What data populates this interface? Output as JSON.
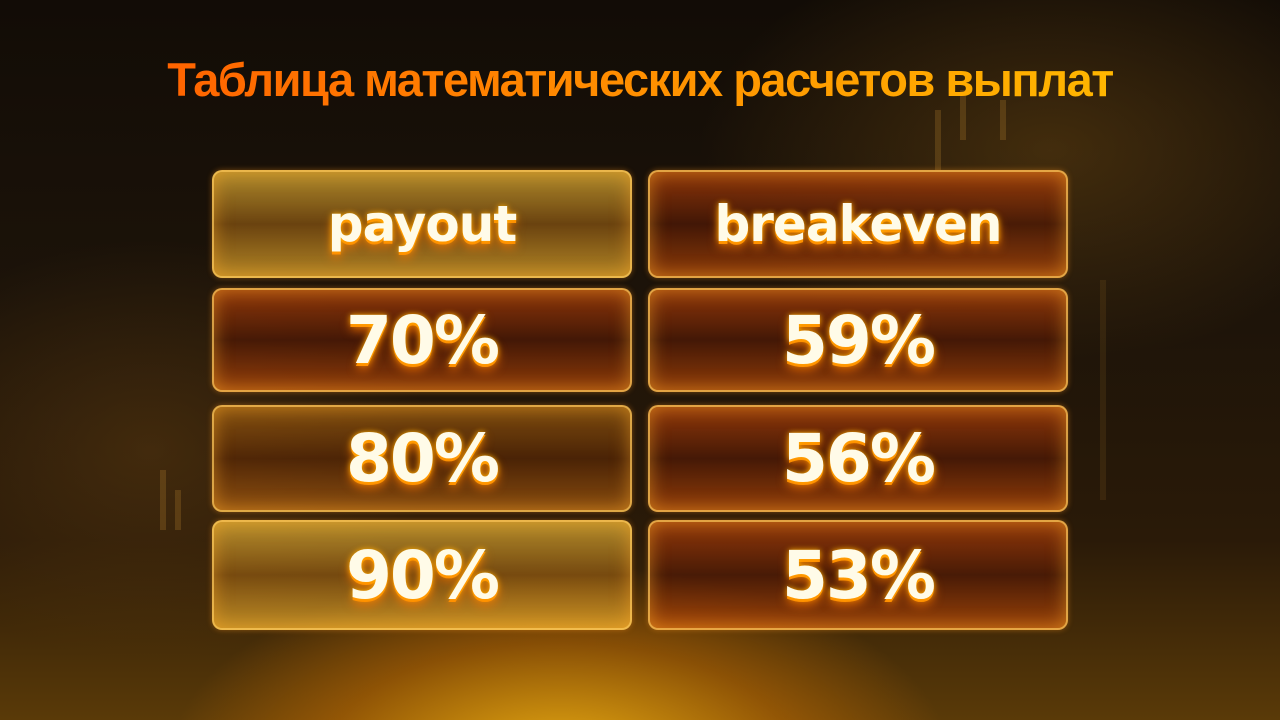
{
  "title": "Таблица математических расчетов выплат",
  "table": {
    "headers": [
      "payout",
      "breakeven"
    ],
    "rows": [
      [
        "70%",
        "59%"
      ],
      [
        "80%",
        "56%"
      ],
      [
        "90%",
        "53%"
      ]
    ]
  },
  "chart_data": {
    "type": "table",
    "columns": [
      "payout",
      "breakeven"
    ],
    "rows": [
      [
        "70%",
        "59%"
      ],
      [
        "80%",
        "56%"
      ],
      [
        "90%",
        "53%"
      ]
    ]
  },
  "colors": {
    "title_gradient_start": "#ff5400",
    "title_gradient_end": "#ffc400",
    "cell_text": "#fffbe8",
    "glow": "#ffb000"
  }
}
